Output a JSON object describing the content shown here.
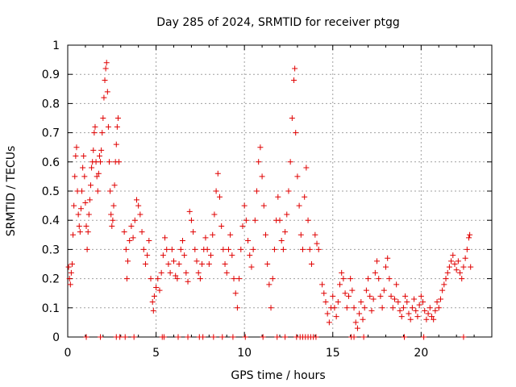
{
  "chart_data": {
    "type": "scatter",
    "title": "Day 285 of 2024, SRMTID for receiver ptgg",
    "xlabel": "GPS time / hours",
    "ylabel": "SRMTID / TECUs",
    "xlim": [
      0,
      24
    ],
    "ylim": [
      0,
      1
    ],
    "xticks": [
      0,
      5,
      10,
      15,
      20
    ],
    "xtick_labels": [
      "0",
      "5",
      "10",
      "15",
      "20"
    ],
    "yticks": [
      0,
      0.1,
      0.2,
      0.3,
      0.4,
      0.5,
      0.6,
      0.7,
      0.8,
      0.9,
      1
    ],
    "ytick_labels": [
      "0",
      "0.1",
      "0.2",
      "0.3",
      "0.4",
      "0.5",
      "0.6",
      "0.7",
      "0.8",
      "0.9",
      "1"
    ],
    "grid": true,
    "marker": "+",
    "color": "#e00000",
    "series": [
      {
        "name": "SRMTID",
        "points": [
          [
            0.05,
            0.24
          ],
          [
            0.1,
            0.2
          ],
          [
            0.15,
            0.18
          ],
          [
            0.2,
            0.22
          ],
          [
            0.25,
            0.25
          ],
          [
            0.3,
            0.35
          ],
          [
            0.35,
            0.45
          ],
          [
            0.4,
            0.55
          ],
          [
            0.45,
            0.62
          ],
          [
            0.5,
            0.65
          ],
          [
            0.55,
            0.5
          ],
          [
            0.6,
            0.42
          ],
          [
            0.65,
            0.38
          ],
          [
            0.7,
            0.36
          ],
          [
            0.75,
            0.44
          ],
          [
            0.8,
            0.5
          ],
          [
            0.85,
            0.58
          ],
          [
            0.9,
            0.62
          ],
          [
            0.95,
            0.55
          ],
          [
            1.0,
            0.46
          ],
          [
            1.05,
            0.38
          ],
          [
            1.1,
            0.3
          ],
          [
            1.15,
            0.36
          ],
          [
            1.2,
            0.42
          ],
          [
            1.25,
            0.47
          ],
          [
            1.3,
            0.52
          ],
          [
            1.35,
            0.58
          ],
          [
            1.4,
            0.6
          ],
          [
            1.45,
            0.64
          ],
          [
            1.5,
            0.7
          ],
          [
            1.55,
            0.72
          ],
          [
            1.6,
            0.6
          ],
          [
            1.65,
            0.55
          ],
          [
            1.7,
            0.5
          ],
          [
            1.75,
            0.56
          ],
          [
            1.8,
            0.62
          ],
          [
            1.85,
            0.6
          ],
          [
            1.9,
            0.64
          ],
          [
            1.95,
            0.7
          ],
          [
            2.0,
            0.75
          ],
          [
            2.05,
            0.82
          ],
          [
            2.1,
            0.88
          ],
          [
            2.15,
            0.92
          ],
          [
            2.2,
            0.94
          ],
          [
            2.25,
            0.84
          ],
          [
            2.3,
            0.72
          ],
          [
            2.35,
            0.6
          ],
          [
            2.4,
            0.5
          ],
          [
            2.45,
            0.42
          ],
          [
            2.5,
            0.38
          ],
          [
            2.55,
            0.4
          ],
          [
            2.6,
            0.45
          ],
          [
            2.65,
            0.52
          ],
          [
            2.7,
            0.6
          ],
          [
            2.75,
            0.66
          ],
          [
            2.8,
            0.72
          ],
          [
            2.85,
            0.75
          ],
          [
            2.9,
            0.6
          ],
          [
            3.2,
            0.36
          ],
          [
            3.3,
            0.3
          ],
          [
            3.35,
            0.2
          ],
          [
            3.4,
            0.26
          ],
          [
            3.5,
            0.33
          ],
          [
            3.6,
            0.38
          ],
          [
            3.7,
            0.34
          ],
          [
            3.8,
            0.4
          ],
          [
            3.9,
            0.47
          ],
          [
            4.0,
            0.45
          ],
          [
            4.1,
            0.42
          ],
          [
            4.2,
            0.36
          ],
          [
            4.3,
            0.3
          ],
          [
            4.4,
            0.25
          ],
          [
            4.5,
            0.28
          ],
          [
            4.6,
            0.33
          ],
          [
            4.7,
            0.2
          ],
          [
            4.8,
            0.12
          ],
          [
            4.85,
            0.09
          ],
          [
            4.9,
            0.14
          ],
          [
            5.0,
            0.17
          ],
          [
            5.1,
            0.2
          ],
          [
            5.2,
            0.16
          ],
          [
            5.3,
            0.22
          ],
          [
            5.4,
            0.28
          ],
          [
            5.5,
            0.34
          ],
          [
            5.6,
            0.3
          ],
          [
            5.7,
            0.25
          ],
          [
            5.8,
            0.22
          ],
          [
            5.9,
            0.3
          ],
          [
            6.0,
            0.26
          ],
          [
            6.1,
            0.21
          ],
          [
            6.2,
            0.2
          ],
          [
            6.3,
            0.25
          ],
          [
            6.4,
            0.3
          ],
          [
            6.5,
            0.33
          ],
          [
            6.6,
            0.28
          ],
          [
            6.7,
            0.22
          ],
          [
            6.8,
            0.19
          ],
          [
            6.9,
            0.43
          ],
          [
            7.0,
            0.4
          ],
          [
            7.1,
            0.36
          ],
          [
            7.2,
            0.3
          ],
          [
            7.3,
            0.26
          ],
          [
            7.4,
            0.22
          ],
          [
            7.5,
            0.2
          ],
          [
            7.6,
            0.25
          ],
          [
            7.7,
            0.3
          ],
          [
            7.8,
            0.34
          ],
          [
            7.9,
            0.3
          ],
          [
            8.0,
            0.25
          ],
          [
            8.1,
            0.28
          ],
          [
            8.2,
            0.35
          ],
          [
            8.3,
            0.42
          ],
          [
            8.4,
            0.5
          ],
          [
            8.5,
            0.56
          ],
          [
            8.6,
            0.48
          ],
          [
            8.7,
            0.38
          ],
          [
            8.8,
            0.3
          ],
          [
            8.9,
            0.25
          ],
          [
            9.0,
            0.22
          ],
          [
            9.1,
            0.3
          ],
          [
            9.2,
            0.35
          ],
          [
            9.3,
            0.28
          ],
          [
            9.4,
            0.2
          ],
          [
            9.5,
            0.15
          ],
          [
            9.6,
            0.1
          ],
          [
            9.7,
            0.2
          ],
          [
            9.8,
            0.3
          ],
          [
            9.9,
            0.38
          ],
          [
            10.0,
            0.45
          ],
          [
            10.1,
            0.4
          ],
          [
            10.2,
            0.33
          ],
          [
            10.3,
            0.28
          ],
          [
            10.4,
            0.24
          ],
          [
            10.5,
            0.3
          ],
          [
            10.6,
            0.4
          ],
          [
            10.7,
            0.5
          ],
          [
            10.8,
            0.6
          ],
          [
            10.9,
            0.65
          ],
          [
            11.0,
            0.55
          ],
          [
            11.1,
            0.45
          ],
          [
            11.2,
            0.35
          ],
          [
            11.3,
            0.25
          ],
          [
            11.4,
            0.18
          ],
          [
            11.5,
            0.1
          ],
          [
            11.6,
            0.2
          ],
          [
            11.7,
            0.3
          ],
          [
            11.8,
            0.4
          ],
          [
            11.9,
            0.48
          ],
          [
            12.0,
            0.4
          ],
          [
            12.1,
            0.33
          ],
          [
            12.2,
            0.3
          ],
          [
            12.3,
            0.36
          ],
          [
            12.4,
            0.42
          ],
          [
            12.5,
            0.5
          ],
          [
            12.6,
            0.6
          ],
          [
            12.7,
            0.75
          ],
          [
            12.8,
            0.88
          ],
          [
            12.85,
            0.92
          ],
          [
            12.9,
            0.7
          ],
          [
            13.0,
            0.55
          ],
          [
            13.1,
            0.45
          ],
          [
            13.2,
            0.35
          ],
          [
            13.3,
            0.3
          ],
          [
            13.4,
            0.48
          ],
          [
            13.5,
            0.58
          ],
          [
            13.6,
            0.4
          ],
          [
            13.7,
            0.3
          ],
          [
            13.8,
            0.25
          ],
          [
            14.0,
            0.35
          ],
          [
            14.1,
            0.32
          ],
          [
            14.2,
            0.3
          ],
          [
            14.4,
            0.18
          ],
          [
            14.5,
            0.15
          ],
          [
            14.6,
            0.12
          ],
          [
            14.7,
            0.08
          ],
          [
            14.8,
            0.05
          ],
          [
            14.9,
            0.1
          ],
          [
            15.0,
            0.14
          ],
          [
            15.1,
            0.1
          ],
          [
            15.2,
            0.07
          ],
          [
            15.3,
            0.12
          ],
          [
            15.4,
            0.18
          ],
          [
            15.5,
            0.22
          ],
          [
            15.6,
            0.2
          ],
          [
            15.7,
            0.15
          ],
          [
            15.8,
            0.1
          ],
          [
            15.9,
            0.14
          ],
          [
            16.0,
            0.2
          ],
          [
            16.1,
            0.16
          ],
          [
            16.2,
            0.1
          ],
          [
            16.3,
            0.05
          ],
          [
            16.4,
            0.03
          ],
          [
            16.5,
            0.08
          ],
          [
            16.6,
            0.12
          ],
          [
            16.7,
            0.06
          ],
          [
            16.8,
            0.1
          ],
          [
            16.9,
            0.16
          ],
          [
            17.0,
            0.2
          ],
          [
            17.1,
            0.14
          ],
          [
            17.2,
            0.09
          ],
          [
            17.3,
            0.13
          ],
          [
            17.4,
            0.22
          ],
          [
            17.5,
            0.26
          ],
          [
            17.6,
            0.2
          ],
          [
            17.7,
            0.14
          ],
          [
            17.8,
            0.1
          ],
          [
            17.9,
            0.16
          ],
          [
            18.0,
            0.24
          ],
          [
            18.1,
            0.27
          ],
          [
            18.2,
            0.2
          ],
          [
            18.3,
            0.14
          ],
          [
            18.4,
            0.1
          ],
          [
            18.5,
            0.13
          ],
          [
            18.6,
            0.18
          ],
          [
            18.7,
            0.12
          ],
          [
            18.8,
            0.09
          ],
          [
            18.9,
            0.07
          ],
          [
            19.0,
            0.1
          ],
          [
            19.1,
            0.14
          ],
          [
            19.2,
            0.12
          ],
          [
            19.3,
            0.08
          ],
          [
            19.4,
            0.06
          ],
          [
            19.5,
            0.1
          ],
          [
            19.6,
            0.13
          ],
          [
            19.7,
            0.09
          ],
          [
            19.8,
            0.07
          ],
          [
            19.9,
            0.11
          ],
          [
            20.0,
            0.14
          ],
          [
            20.1,
            0.12
          ],
          [
            20.2,
            0.09
          ],
          [
            20.3,
            0.06
          ],
          [
            20.4,
            0.08
          ],
          [
            20.5,
            0.1
          ],
          [
            20.6,
            0.07
          ],
          [
            20.7,
            0.06
          ],
          [
            20.8,
            0.09
          ],
          [
            20.9,
            0.12
          ],
          [
            21.0,
            0.1
          ],
          [
            21.1,
            0.13
          ],
          [
            21.2,
            0.16
          ],
          [
            21.3,
            0.18
          ],
          [
            21.4,
            0.2
          ],
          [
            21.5,
            0.22
          ],
          [
            21.6,
            0.24
          ],
          [
            21.7,
            0.26
          ],
          [
            21.8,
            0.28
          ],
          [
            21.9,
            0.25
          ],
          [
            22.0,
            0.23
          ],
          [
            22.1,
            0.26
          ],
          [
            22.2,
            0.22
          ],
          [
            22.3,
            0.2
          ],
          [
            22.4,
            0.24
          ],
          [
            22.5,
            0.27
          ],
          [
            22.6,
            0.3
          ],
          [
            22.7,
            0.34
          ],
          [
            22.75,
            0.35
          ],
          [
            22.8,
            0.24
          ],
          [
            1.05,
            0.0
          ],
          [
            1.85,
            0.0
          ],
          [
            2.75,
            0.0
          ],
          [
            2.95,
            0.0
          ],
          [
            3.25,
            0.0
          ],
          [
            3.75,
            0.0
          ],
          [
            5.35,
            0.0
          ],
          [
            5.45,
            0.0
          ],
          [
            6.25,
            0.0
          ],
          [
            6.8,
            0.0
          ],
          [
            7.45,
            0.0
          ],
          [
            7.65,
            0.0
          ],
          [
            8.25,
            0.0
          ],
          [
            8.75,
            0.0
          ],
          [
            9.35,
            0.0
          ],
          [
            10.05,
            0.0
          ],
          [
            11.05,
            0.0
          ],
          [
            11.85,
            0.0
          ],
          [
            12.3,
            0.0
          ],
          [
            12.95,
            0.0
          ],
          [
            13.15,
            0.0
          ],
          [
            13.3,
            0.0
          ],
          [
            13.45,
            0.0
          ],
          [
            13.6,
            0.0
          ],
          [
            13.75,
            0.0
          ],
          [
            13.9,
            0.0
          ],
          [
            14.05,
            0.0
          ],
          [
            16.05,
            0.0
          ],
          [
            16.2,
            0.0
          ],
          [
            16.75,
            0.0
          ],
          [
            19.05,
            0.0
          ],
          [
            20.15,
            0.0
          ],
          [
            22.4,
            0.0
          ]
        ]
      }
    ]
  }
}
